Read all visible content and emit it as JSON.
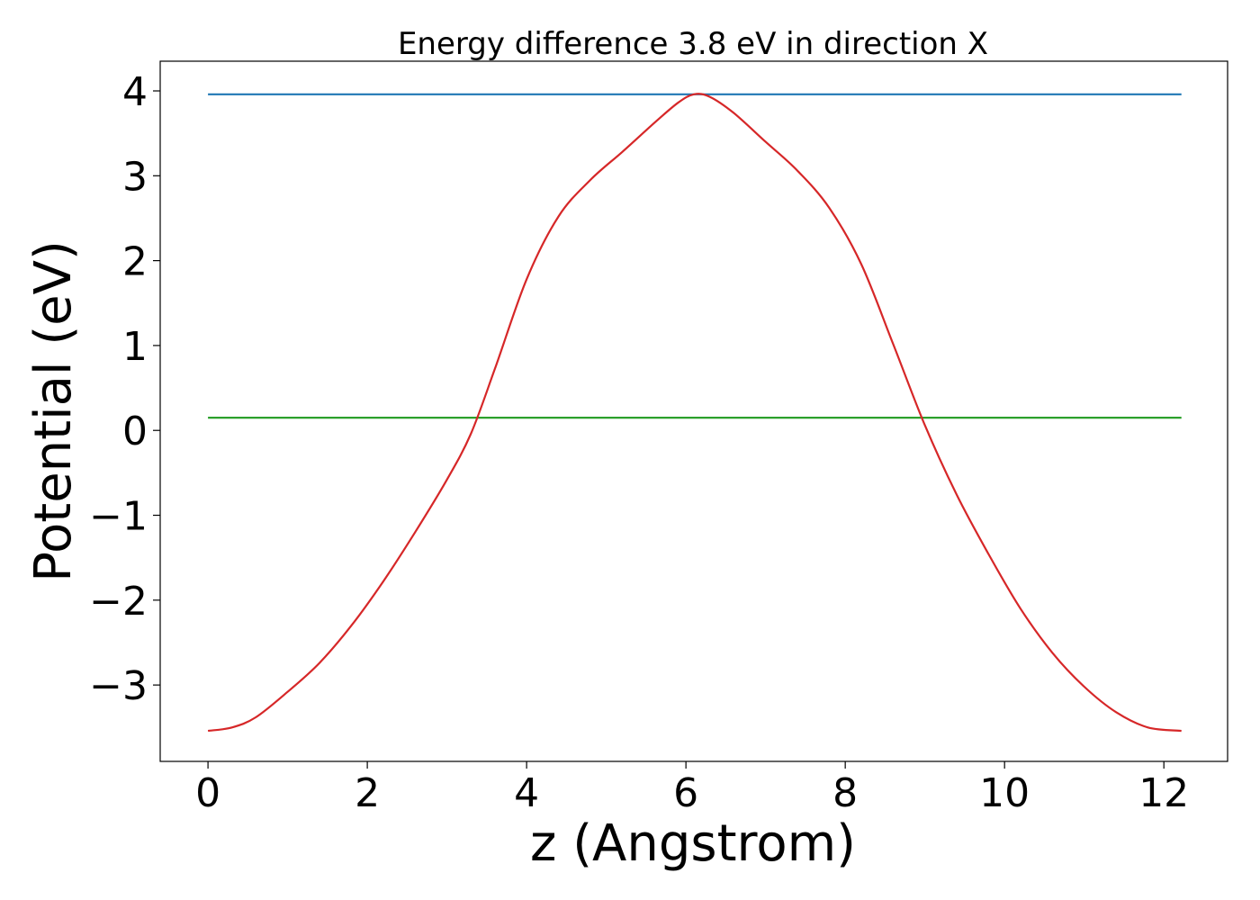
{
  "chart_data": {
    "type": "line",
    "title": "Energy difference 3.8 eV in direction X",
    "xlabel": "z (Angstrom)",
    "ylabel": "Potential (eV)",
    "xlim": [
      -0.6,
      12.8
    ],
    "ylim": [
      -3.9,
      4.35
    ],
    "grid": false,
    "x_ticks": [
      0,
      2,
      4,
      6,
      8,
      10,
      12
    ],
    "x_tick_labels": [
      "0",
      "2",
      "4",
      "6",
      "8",
      "10",
      "12"
    ],
    "y_ticks": [
      -3,
      -2,
      -1,
      0,
      1,
      2,
      3,
      4
    ],
    "y_tick_labels": [
      "−3",
      "−2",
      "−1",
      "0",
      "1",
      "2",
      "3",
      "4"
    ],
    "series": [
      {
        "color": "#1f77b4",
        "style": "hline",
        "x": [
          0,
          12.22
        ],
        "y": [
          3.96,
          3.96
        ]
      },
      {
        "color": "#2ca02c",
        "style": "hline",
        "x": [
          0,
          12.22
        ],
        "y": [
          0.15,
          0.15
        ]
      },
      {
        "color": "#d62728",
        "style": "curve",
        "x": [
          0,
          0.3,
          0.6,
          1.0,
          1.4,
          1.8,
          2.2,
          2.6,
          3.0,
          3.3,
          3.6,
          4.0,
          4.4,
          4.8,
          5.2,
          5.6,
          5.9,
          6.1,
          6.3,
          6.6,
          7.0,
          7.4,
          7.8,
          8.2,
          8.6,
          9.0,
          9.4,
          9.8,
          10.2,
          10.6,
          11.0,
          11.4,
          11.8,
          12.22
        ],
        "y": [
          -3.54,
          -3.5,
          -3.38,
          -3.08,
          -2.74,
          -2.3,
          -1.78,
          -1.2,
          -0.58,
          -0.04,
          0.72,
          1.78,
          2.52,
          2.95,
          3.28,
          3.62,
          3.86,
          3.96,
          3.93,
          3.74,
          3.4,
          3.06,
          2.62,
          1.96,
          1.02,
          0.06,
          -0.76,
          -1.46,
          -2.1,
          -2.62,
          -3.02,
          -3.32,
          -3.5,
          -3.54
        ]
      }
    ]
  }
}
